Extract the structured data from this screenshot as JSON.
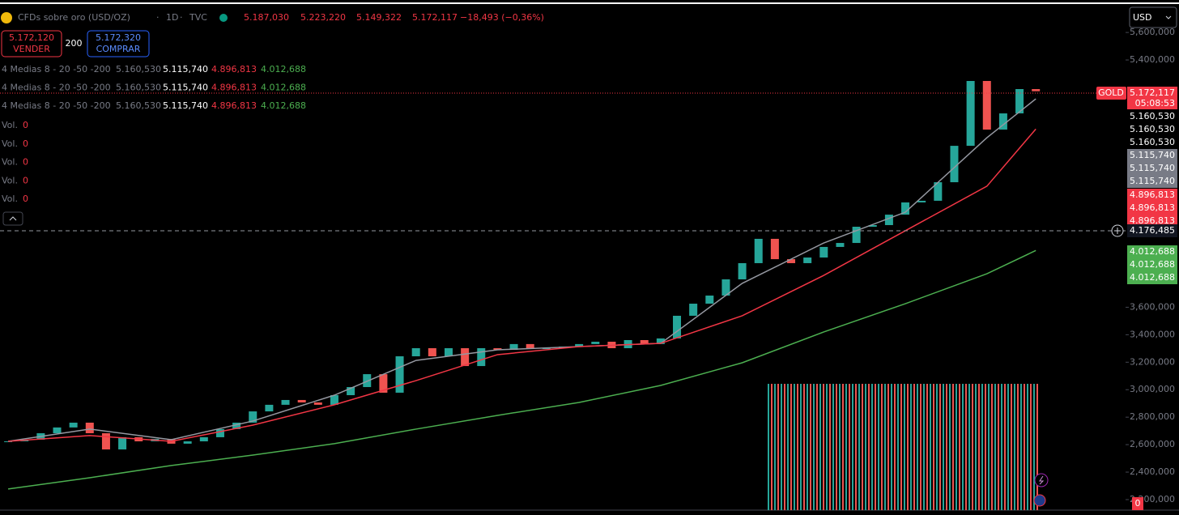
{
  "header": {
    "symbol": "CFDs sobre oro (USD/OZ)",
    "interval": "1D",
    "source": "TVC",
    "open": "5.187,030",
    "high": "5.223,220",
    "low": "5.149,322",
    "close": "5.172,117",
    "change": "−18,493 (−0,36%)"
  },
  "trade": {
    "sell_price": "5.172,120",
    "sell_label": "VENDER",
    "spread": "200",
    "buy_price": "5.172,320",
    "buy_label": "COMPRAR"
  },
  "indicators": [
    {
      "name": "4 Medias 8 - 20 -50 -200",
      "values": [
        "5.160,530",
        "5.115,740",
        "4.896,813",
        "4.012,688"
      ]
    },
    {
      "name": "4 Medias 8 - 20 -50 -200",
      "values": [
        "5.160,530",
        "5.115,740",
        "4.896,813",
        "4.012,688"
      ]
    },
    {
      "name": "4 Medias 8 - 20 -50 -200",
      "values": [
        "5.160,530",
        "5.115,740",
        "4.896,813",
        "4.012,688"
      ]
    }
  ],
  "volumes": [
    {
      "name": "Vol.",
      "value": "0"
    },
    {
      "name": "Vol.",
      "value": "0"
    },
    {
      "name": "Vol.",
      "value": "0"
    },
    {
      "name": "Vol.",
      "value": "0"
    },
    {
      "name": "Vol.",
      "value": "0"
    }
  ],
  "price_axis": {
    "currency": "USD",
    "symbol_tag": "GOLD",
    "last_price": "5.172,117",
    "countdown": "05:08:53",
    "tags": [
      "5.160,530",
      "5.160,530",
      "5.160,530",
      "5.115,740",
      "5.115,740",
      "5.115,740",
      "4.896,813",
      "4.896,813",
      "4.896,813",
      "4.012,688",
      "4.012,688",
      "4.012,688"
    ],
    "crosshair": "4.176,485",
    "volume_tag": "0"
  },
  "chart_data": {
    "type": "candlestick",
    "up_color": "#26a69a",
    "down_color": "#ef5350",
    "close": [
      2624,
      2636,
      2683,
      2725,
      2760,
      2683,
      2565,
      2654,
      2624,
      2642,
      2607,
      2624,
      2654,
      2713,
      2760,
      2842,
      2890,
      2925,
      2907,
      2890,
      2960,
      3019,
      3113,
      2978,
      3243,
      3302,
      3243,
      3302,
      3172,
      3302,
      3290,
      3332,
      3302,
      3302,
      3314,
      3332,
      3349,
      3302,
      3361,
      3332,
      3373,
      3538,
      3626,
      3685,
      3803,
      3921,
      4098,
      3950,
      3921,
      3962,
      4039,
      4068,
      4186,
      4198,
      4274,
      4363,
      4375,
      4510,
      4775,
      5247,
      4893,
      5011,
      5188,
      5172
    ],
    "series": [
      {
        "color": "#9598a1",
        "x": [
          0,
          5,
          10,
          15,
          20,
          25,
          30,
          35,
          40,
          45,
          50,
          55,
          60,
          63
        ],
        "values": [
          2624,
          2713,
          2636,
          2772,
          2960,
          3213,
          3290,
          3314,
          3337,
          3774,
          4068,
          4292,
          4834,
          5117
        ]
      },
      {
        "color": "#f23645",
        "x": [
          0,
          5,
          10,
          15,
          20,
          25,
          30,
          35,
          40,
          45,
          50,
          55,
          60,
          63
        ],
        "values": [
          2624,
          2666,
          2624,
          2742,
          2890,
          3066,
          3255,
          3314,
          3337,
          3538,
          3832,
          4157,
          4481,
          4897
        ]
      },
      {
        "color": "#4caf50",
        "x": [
          0,
          5,
          10,
          15,
          20,
          25,
          30,
          35,
          40,
          45,
          50,
          55,
          60,
          63
        ],
        "values": [
          2277,
          2359,
          2448,
          2524,
          2607,
          2713,
          2813,
          2907,
          3031,
          3196,
          3420,
          3626,
          3844,
          4013
        ]
      }
    ],
    "xlim": [
      -0.5,
      68.5
    ],
    "ylim": [
      2135,
      5801
    ],
    "yticks": [
      {
        "value": 5600,
        "label": "5,600,000"
      },
      {
        "value": 5400,
        "label": "5,400,000"
      },
      {
        "value": 3600,
        "label": "3,600,000"
      },
      {
        "value": 3400,
        "label": "3,400,000"
      },
      {
        "value": 3200,
        "label": "3,200,000"
      },
      {
        "value": 3000,
        "label": "3,000,000"
      },
      {
        "value": 2800,
        "label": "2,800,000"
      },
      {
        "value": 2600,
        "label": "2,600,000"
      },
      {
        "value": 2400,
        "label": "2,400,000"
      },
      {
        "value": 2200,
        "label": "2,200,000"
      }
    ]
  }
}
